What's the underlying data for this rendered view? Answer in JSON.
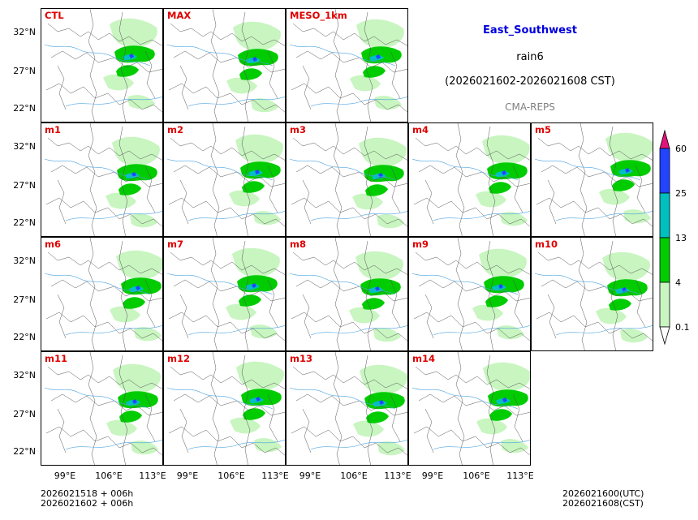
{
  "title": {
    "region": "East_Southwest",
    "variable": "rain6",
    "period": "(2026021602-2026021608 CST)",
    "model": "CMA-REPS"
  },
  "colors": {
    "title": "#0000dd",
    "label": "#e00000",
    "model": "#808080",
    "rain_light": "#c8f5c0",
    "rain_mod": "#00cc00",
    "rain_heavy": "#00bfbf",
    "rain_storm": "#2244ff",
    "rain_extreme": "#e0147a"
  },
  "panels": [
    {
      "label": "CTL"
    },
    {
      "label": "MAX"
    },
    {
      "label": "MESO_1km"
    },
    {
      "label": "m1"
    },
    {
      "label": "m2"
    },
    {
      "label": "m3"
    },
    {
      "label": "m4"
    },
    {
      "label": "m5"
    },
    {
      "label": "m6"
    },
    {
      "label": "m7"
    },
    {
      "label": "m8"
    },
    {
      "label": "m9"
    },
    {
      "label": "m10"
    },
    {
      "label": "m11"
    },
    {
      "label": "m12"
    },
    {
      "label": "m13"
    },
    {
      "label": "m14"
    }
  ],
  "axes": {
    "lat_ticks": [
      "32°N",
      "27°N",
      "22°N"
    ],
    "lon_ticks": [
      "99°E",
      "106°E",
      "113°E"
    ]
  },
  "colorbar": {
    "levels": [
      "60",
      "25",
      "13",
      "4",
      "0.1"
    ]
  },
  "footer": {
    "init_line1": "2026021518  +  006h",
    "init_line2": "2026021602  +  006h",
    "valid_utc": "2026021600(UTC)",
    "valid_cst": "2026021608(CST)"
  }
}
